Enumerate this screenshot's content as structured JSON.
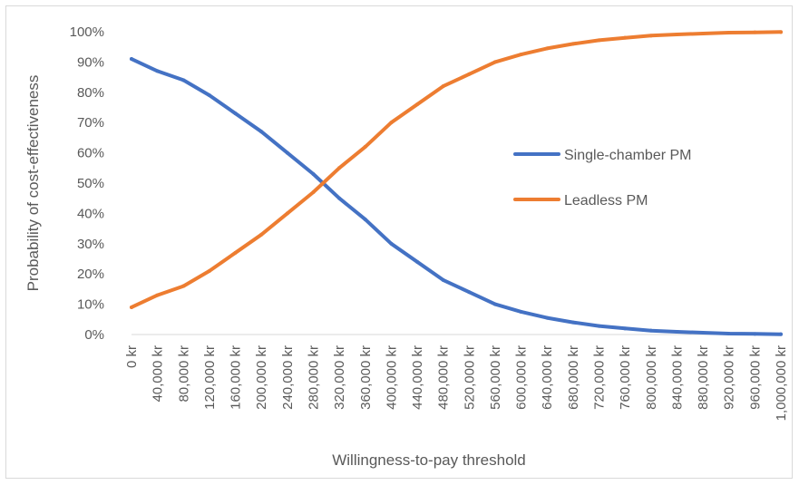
{
  "chart_data": {
    "type": "line",
    "title": "",
    "xlabel": "Willingness-to-pay threshold",
    "ylabel": "Probability of cost-effectiveness",
    "x": [
      0,
      40000,
      80000,
      120000,
      160000,
      200000,
      240000,
      280000,
      320000,
      360000,
      400000,
      440000,
      480000,
      520000,
      560000,
      600000,
      640000,
      680000,
      720000,
      760000,
      800000,
      840000,
      880000,
      920000,
      960000,
      1000000
    ],
    "x_tick_labels": [
      "0 kr",
      "40,000 kr",
      "80,000 kr",
      "120,000 kr",
      "160,000 kr",
      "200,000 kr",
      "240,000 kr",
      "280,000 kr",
      "320,000 kr",
      "360,000 kr",
      "400,000 kr",
      "440,000 kr",
      "480,000 kr",
      "520,000 kr",
      "560,000 kr",
      "600,000 kr",
      "640,000 kr",
      "680,000 kr",
      "720,000 kr",
      "760,000 kr",
      "800,000 kr",
      "840,000 kr",
      "880,000 kr",
      "920,000 kr",
      "960,000 kr",
      "1,000,000 kr"
    ],
    "y_tick_labels": [
      "0%",
      "10%",
      "20%",
      "30%",
      "40%",
      "50%",
      "60%",
      "70%",
      "80%",
      "90%",
      "100%"
    ],
    "ylim": [
      0,
      100
    ],
    "xlim": [
      0,
      1000000
    ],
    "grid": false,
    "legend_position": "right",
    "series": [
      {
        "name": "Single-chamber PM",
        "color": "#4472c4",
        "values": [
          91,
          87,
          84,
          79,
          73,
          67,
          60,
          53,
          45,
          38,
          30,
          24,
          18,
          14,
          10,
          7.5,
          5.5,
          4,
          2.8,
          2,
          1.3,
          0.9,
          0.6,
          0.3,
          0.2,
          0.1
        ]
      },
      {
        "name": "Leadless PM",
        "color": "#ed7d31",
        "values": [
          9,
          13,
          16,
          21,
          27,
          33,
          40,
          47,
          55,
          62,
          70,
          76,
          82,
          86,
          90,
          92.5,
          94.5,
          96,
          97.2,
          98,
          98.7,
          99.1,
          99.4,
          99.7,
          99.8,
          99.9
        ]
      }
    ]
  }
}
